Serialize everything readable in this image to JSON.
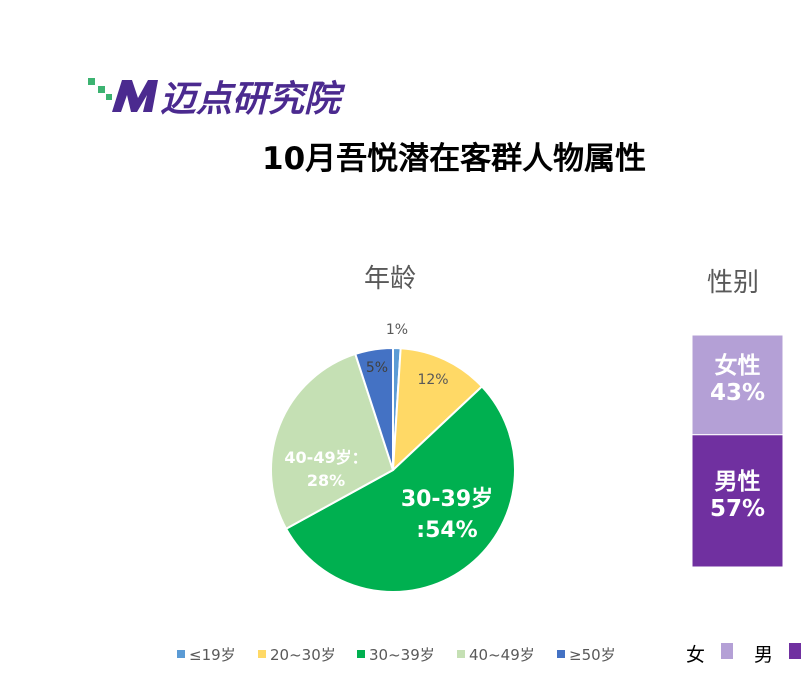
{
  "header": {
    "logo": "迈点研究院",
    "title": "10月吾悦潜在客群人物属性"
  },
  "chart_data": [
    {
      "type": "pie",
      "title": "年龄",
      "categories": [
        "≤19岁",
        "20~30岁",
        "30~39岁",
        "40~49岁",
        "≥50岁"
      ],
      "values": [
        1,
        12,
        54,
        28,
        5
      ],
      "value_labels": [
        "1%",
        "12%",
        "30-39岁 :54%",
        "40-49岁：28%",
        "5%"
      ],
      "colors": [
        "#5b9bd5",
        "#ffd966",
        "#00b050",
        "#c5e0b4",
        "#4472c4"
      ]
    },
    {
      "type": "stacked_bar",
      "title": "性别",
      "series": [
        {
          "name": "女",
          "color": "#b4a0d6",
          "values": [
            43
          ],
          "value_labels": [
            "女性43%"
          ]
        },
        {
          "name": "男",
          "color": "#7030a0",
          "values": [
            57
          ],
          "value_labels": [
            "男性57%"
          ]
        }
      ]
    }
  ]
}
